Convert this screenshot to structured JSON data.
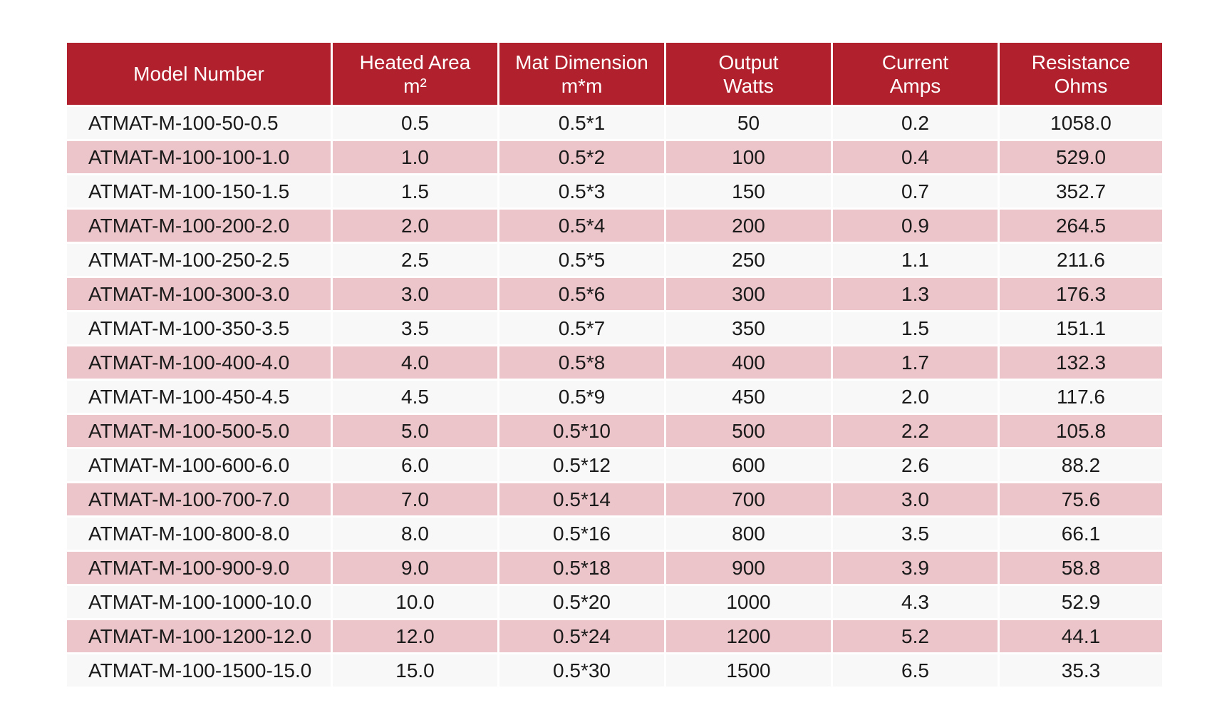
{
  "table": {
    "headers": [
      {
        "line1": "Model Number",
        "line2": ""
      },
      {
        "line1": "Heated Area",
        "line2": "m²"
      },
      {
        "line1": "Mat Dimension",
        "line2": "m*m"
      },
      {
        "line1": "Output",
        "line2": "Watts"
      },
      {
        "line1": "Current",
        "line2": "Amps"
      },
      {
        "line1": "Resistance",
        "line2": "Ohms"
      }
    ],
    "rows": [
      [
        "ATMAT-M-100-50-0.5",
        "0.5",
        "0.5*1",
        "50",
        "0.2",
        "1058.0"
      ],
      [
        "ATMAT-M-100-100-1.0",
        "1.0",
        "0.5*2",
        "100",
        "0.4",
        "529.0"
      ],
      [
        "ATMAT-M-100-150-1.5",
        "1.5",
        "0.5*3",
        "150",
        "0.7",
        "352.7"
      ],
      [
        "ATMAT-M-100-200-2.0",
        "2.0",
        "0.5*4",
        "200",
        "0.9",
        "264.5"
      ],
      [
        "ATMAT-M-100-250-2.5",
        "2.5",
        "0.5*5",
        "250",
        "1.1",
        "211.6"
      ],
      [
        "ATMAT-M-100-300-3.0",
        "3.0",
        "0.5*6",
        "300",
        "1.3",
        "176.3"
      ],
      [
        "ATMAT-M-100-350-3.5",
        "3.5",
        "0.5*7",
        "350",
        "1.5",
        "151.1"
      ],
      [
        "ATMAT-M-100-400-4.0",
        "4.0",
        "0.5*8",
        "400",
        "1.7",
        "132.3"
      ],
      [
        "ATMAT-M-100-450-4.5",
        "4.5",
        "0.5*9",
        "450",
        "2.0",
        "117.6"
      ],
      [
        "ATMAT-M-100-500-5.0",
        "5.0",
        "0.5*10",
        "500",
        "2.2",
        "105.8"
      ],
      [
        "ATMAT-M-100-600-6.0",
        "6.0",
        "0.5*12",
        "600",
        "2.6",
        "88.2"
      ],
      [
        "ATMAT-M-100-700-7.0",
        "7.0",
        "0.5*14",
        "700",
        "3.0",
        "75.6"
      ],
      [
        "ATMAT-M-100-800-8.0",
        "8.0",
        "0.5*16",
        "800",
        "3.5",
        "66.1"
      ],
      [
        "ATMAT-M-100-900-9.0",
        "9.0",
        "0.5*18",
        "900",
        "3.9",
        "58.8"
      ],
      [
        "ATMAT-M-100-1000-10.0",
        "10.0",
        "0.5*20",
        "1000",
        "4.3",
        "52.9"
      ],
      [
        "ATMAT-M-100-1200-12.0",
        "12.0",
        "0.5*24",
        "1200",
        "5.2",
        "44.1"
      ],
      [
        "ATMAT-M-100-1500-15.0",
        "15.0",
        "0.5*30",
        "1500",
        "6.5",
        "35.3"
      ]
    ]
  },
  "colors": {
    "header_bg": "#b1202d",
    "header_text": "#ffffff",
    "row_light": "#f8f8f8",
    "row_pink": "#ebc5c9"
  }
}
